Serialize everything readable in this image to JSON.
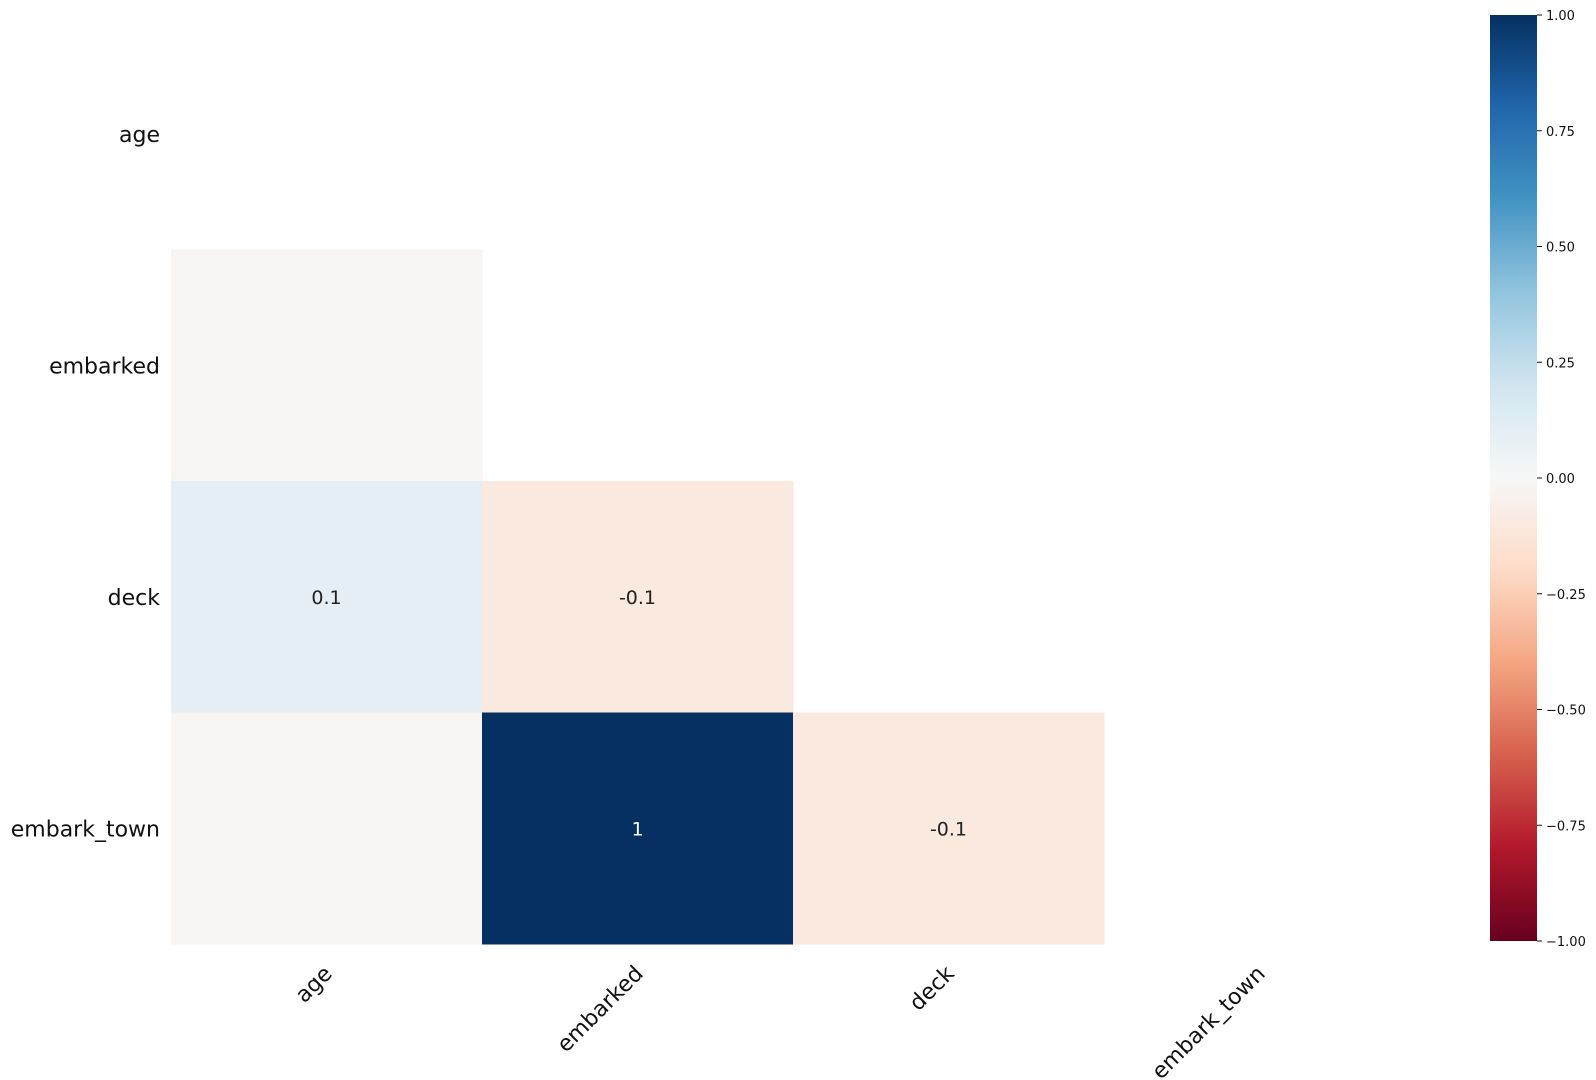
{
  "chart_data": {
    "type": "heatmap",
    "title": "",
    "xlabel": "",
    "ylabel": "",
    "x_categories": [
      "age",
      "embarked",
      "deck",
      "embark_town"
    ],
    "y_categories": [
      "age",
      "embarked",
      "deck",
      "embark_town"
    ],
    "mask": "upper-triangle-including-diagonal",
    "cells": [
      {
        "row": "embarked",
        "col": "age",
        "value": -0.02,
        "label": ""
      },
      {
        "row": "deck",
        "col": "age",
        "value": 0.1,
        "label": "0.1"
      },
      {
        "row": "deck",
        "col": "embarked",
        "value": -0.1,
        "label": "-0.1"
      },
      {
        "row": "embark_town",
        "col": "age",
        "value": -0.02,
        "label": ""
      },
      {
        "row": "embark_town",
        "col": "embarked",
        "value": 1.0,
        "label": "1"
      },
      {
        "row": "embark_town",
        "col": "deck",
        "value": -0.1,
        "label": "-0.1"
      }
    ],
    "colorbar": {
      "vmin": -1.0,
      "vmax": 1.0,
      "ticks": [
        {
          "value": 1.0,
          "label": "1.00"
        },
        {
          "value": 0.75,
          "label": "0.75"
        },
        {
          "value": 0.5,
          "label": "0.50"
        },
        {
          "value": 0.25,
          "label": "0.25"
        },
        {
          "value": 0.0,
          "label": "0.00"
        },
        {
          "value": -0.25,
          "label": "−0.25"
        },
        {
          "value": -0.5,
          "label": "−0.50"
        },
        {
          "value": -0.75,
          "label": "−0.75"
        },
        {
          "value": -1.0,
          "label": "−1.00"
        }
      ],
      "colormap": "RdBu",
      "colors": [
        "#67001f",
        "#b2182b",
        "#d6604d",
        "#f4a582",
        "#fddbc7",
        "#f7f7f7",
        "#d1e5f0",
        "#92c5de",
        "#4393c3",
        "#2166ac",
        "#053061"
      ]
    },
    "grid": false,
    "legend_placement": "right"
  }
}
